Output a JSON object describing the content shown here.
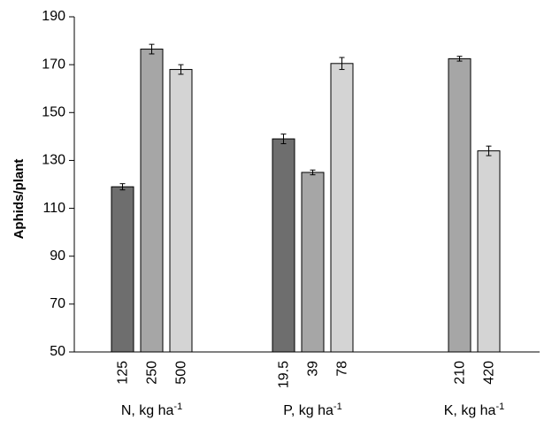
{
  "chart_data": {
    "type": "bar",
    "ylabel": "Aphids/plant",
    "ylim": [
      50,
      190
    ],
    "yticks": [
      50,
      70,
      90,
      110,
      130,
      150,
      170,
      190
    ],
    "grid": false,
    "colors": {
      "dark": "#6e6e6e",
      "medium": "#a6a6a6",
      "light": "#d4d4d4",
      "stroke": "#000000"
    },
    "groups": [
      {
        "label": "N, kg ha",
        "superscript": "-1",
        "bars": [
          {
            "label": "125",
            "value": 119,
            "error": 1.3,
            "shade": "dark"
          },
          {
            "label": "250",
            "value": 176.5,
            "error": 2.0,
            "shade": "medium"
          },
          {
            "label": "500",
            "value": 168,
            "error": 2.0,
            "shade": "light"
          }
        ]
      },
      {
        "label": "P, kg ha",
        "superscript": "-1",
        "bars": [
          {
            "label": "19.5",
            "value": 139,
            "error": 2.0,
            "shade": "dark"
          },
          {
            "label": "39",
            "value": 125,
            "error": 1.0,
            "shade": "medium"
          },
          {
            "label": "78",
            "value": 170.5,
            "error": 2.5,
            "shade": "light"
          }
        ]
      },
      {
        "label": "K, kg ha",
        "superscript": "-1",
        "bars": [
          {
            "label": "210",
            "value": 172.5,
            "error": 1.0,
            "shade": "medium"
          },
          {
            "label": "420",
            "value": 134,
            "error": 2.0,
            "shade": "light"
          }
        ]
      }
    ]
  }
}
